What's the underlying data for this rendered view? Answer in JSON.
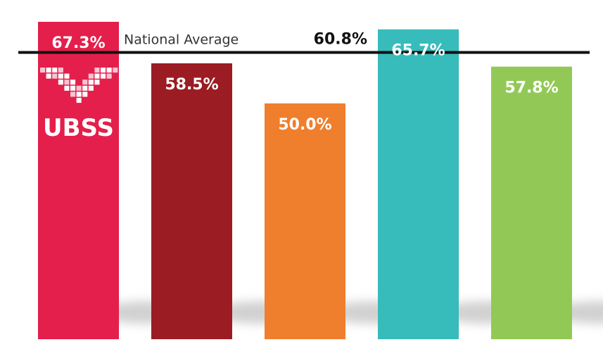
{
  "chart_data": {
    "type": "bar",
    "categories": [
      "",
      "",
      "",
      "",
      ""
    ],
    "values": [
      67.3,
      58.5,
      50.0,
      65.7,
      57.8
    ],
    "value_labels": [
      "67.3%",
      "58.5%",
      "50.0%",
      "65.7%",
      "57.8%"
    ],
    "colors": [
      "#e41f4b",
      "#9b1c23",
      "#ef7f2d",
      "#38bbbb",
      "#92c956"
    ],
    "reference_line": {
      "label": "National Average",
      "value": 60.8,
      "value_label": "60.8%",
      "color": "#111111"
    },
    "title": "",
    "xlabel": "",
    "ylabel": "",
    "grid": false,
    "logo": {
      "text": "UBSS",
      "icon": "ubss-logo-icon"
    }
  }
}
